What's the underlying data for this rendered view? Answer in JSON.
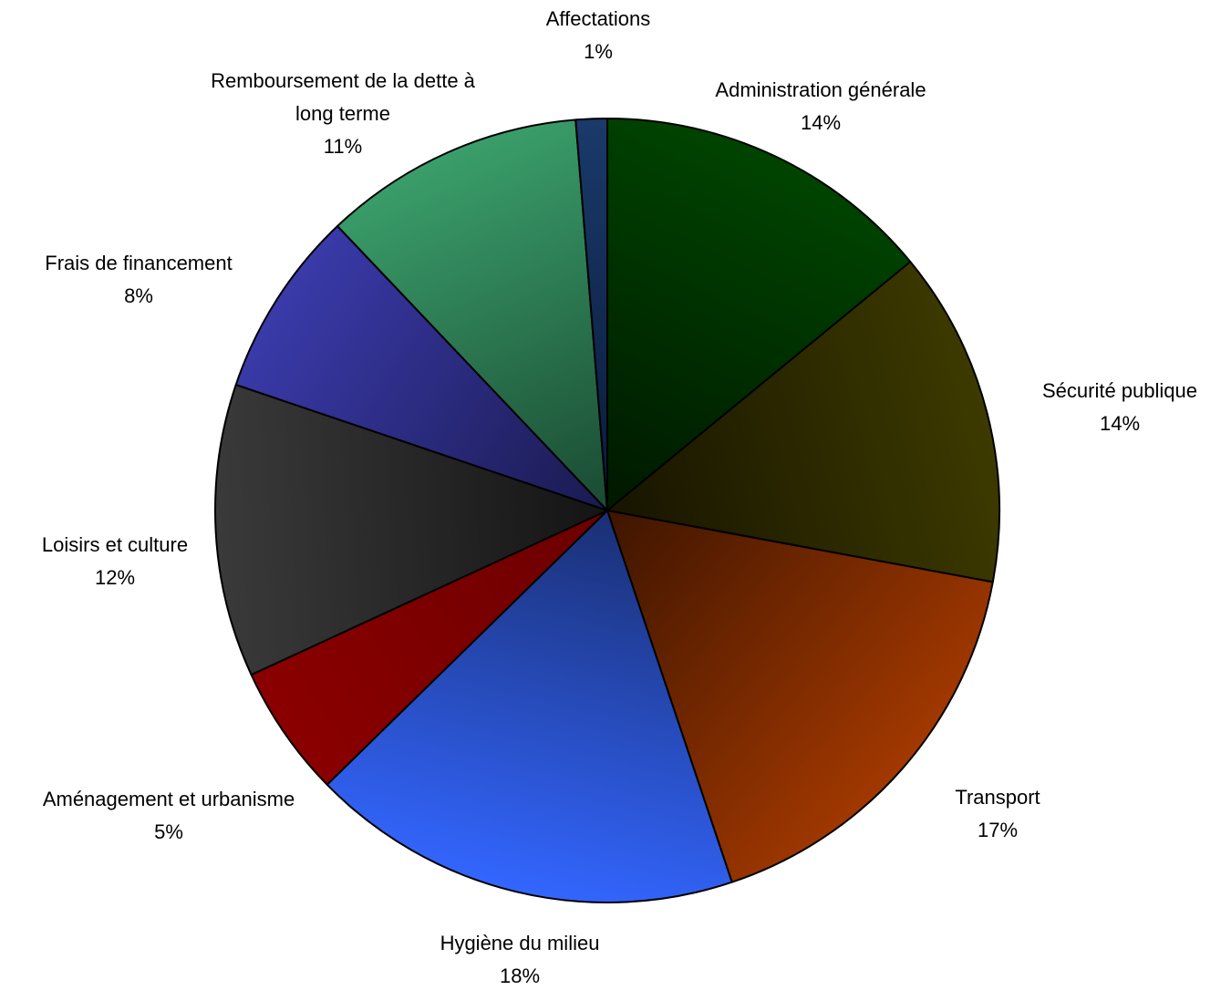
{
  "chart_data": {
    "type": "pie",
    "start_angle_deg": 0,
    "direction": "clockwise",
    "categories": [
      "Administration générale",
      "Sécurité publique",
      "Transport",
      "Hygiène du milieu",
      "Aménagement et urbanisme",
      "Loisirs et culture",
      "Frais de financement",
      "Remboursement de la dette à long terme",
      "Affectations"
    ],
    "label_lines": [
      [
        "Administration générale"
      ],
      [
        "Sécurité publique"
      ],
      [
        "Transport"
      ],
      [
        "Hygiène du milieu"
      ],
      [
        "Aménagement et urbanisme"
      ],
      [
        "Loisirs et culture"
      ],
      [
        "Frais de financement"
      ],
      [
        "Remboursement de la dette à",
        "long terme"
      ],
      [
        "Affectations"
      ]
    ],
    "values": [
      14.2,
      14.0,
      17.1,
      18.0,
      5.5,
      12.2,
      7.8,
      10.9,
      1.3
    ],
    "percent_labels": [
      "14%",
      "14%",
      "17%",
      "18%",
      "5%",
      "12%",
      "8%",
      "11%",
      "1%"
    ],
    "colors": [
      [
        "#004400",
        "#001800"
      ],
      [
        "#3d3a00",
        "#171400"
      ],
      [
        "#a23800",
        "#3e1500"
      ],
      [
        "#3366ff",
        "#1a2f73"
      ],
      [
        "#8b0000",
        "#6b0000"
      ],
      [
        "#3a3a3a",
        "#141414"
      ],
      [
        "#3a3aaa",
        "#1a1a50"
      ],
      [
        "#3a9e6a",
        "#1a4a32"
      ],
      [
        "#1a3a6a",
        "#0a1a3a"
      ]
    ]
  }
}
